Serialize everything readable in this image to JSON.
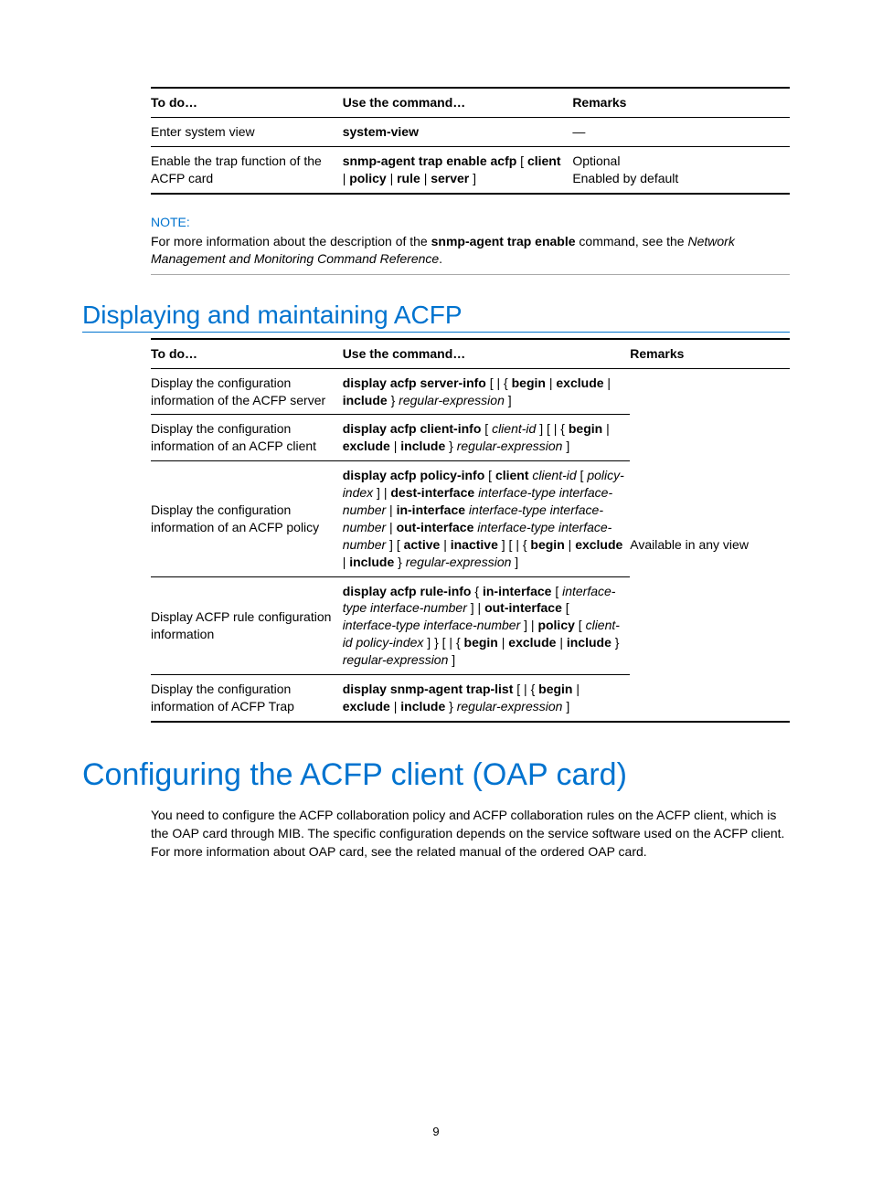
{
  "colors": {
    "brand": "#0073cf",
    "text": "#000000",
    "bg": "#ffffff",
    "rule_light": "#aaaaaa"
  },
  "fonts": {
    "body_size_pt": 10.5,
    "h2_size_pt": 21,
    "h1_size_pt": 25
  },
  "table1": {
    "headers": {
      "c1": "To do…",
      "c2": "Use the command…",
      "c3": "Remarks"
    },
    "rows": [
      {
        "c1": "Enter system view",
        "c2_bold": "system-view",
        "c2_tail": "",
        "c3": "—"
      },
      {
        "c1": "Enable the trap function of the ACFP card",
        "c2_parts": [
          {
            "t": "snmp-agent trap enable acfp ",
            "b": true
          },
          {
            "t": "[ ",
            "b": false
          },
          {
            "t": "client ",
            "b": true
          },
          {
            "t": "| ",
            "b": false
          },
          {
            "t": "policy ",
            "b": true
          },
          {
            "t": "| ",
            "b": false
          },
          {
            "t": "rule ",
            "b": true
          },
          {
            "t": "| ",
            "b": false
          },
          {
            "t": "server ",
            "b": true
          },
          {
            "t": "]",
            "b": false
          }
        ],
        "c3_line1": "Optional",
        "c3_line2": "Enabled by default"
      }
    ]
  },
  "note": {
    "label": "NOTE:",
    "text_pre": "For more information about the description of the ",
    "text_bold": "snmp-agent trap enable",
    "text_mid": " command, see the ",
    "text_ital": "Network Management and Monitoring Command Reference",
    "text_post": "."
  },
  "section_heading": "Displaying and maintaining ACFP",
  "table2": {
    "headers": {
      "c1": "To do…",
      "c2": "Use the command…",
      "c3": "Remarks"
    },
    "remarks_shared": "Available in any view",
    "rows": [
      {
        "c1": "Display the configuration information of the ACFP server",
        "c2": [
          {
            "t": "display acfp server-info ",
            "b": true
          },
          {
            "t": "[ | { ",
            "b": false
          },
          {
            "t": "begin ",
            "b": true
          },
          {
            "t": "| ",
            "b": false
          },
          {
            "t": "exclude ",
            "b": true
          },
          {
            "t": "| ",
            "b": false
          },
          {
            "t": "include ",
            "b": true
          },
          {
            "t": "} ",
            "b": false
          },
          {
            "t": "regular-expression ",
            "i": true
          },
          {
            "t": "]",
            "b": false
          }
        ]
      },
      {
        "c1": "Display the configuration information of an ACFP client",
        "c2": [
          {
            "t": "display acfp client-info ",
            "b": true
          },
          {
            "t": "[ ",
            "b": false
          },
          {
            "t": "client-id ",
            "i": true
          },
          {
            "t": "] [ | { ",
            "b": false
          },
          {
            "t": "begin ",
            "b": true
          },
          {
            "t": "| ",
            "b": false
          },
          {
            "t": "exclude ",
            "b": true
          },
          {
            "t": "| ",
            "b": false
          },
          {
            "t": "include ",
            "b": true
          },
          {
            "t": "} ",
            "b": false
          },
          {
            "t": "regular-expression ",
            "i": true
          },
          {
            "t": "]",
            "b": false
          }
        ]
      },
      {
        "c1": "Display the configuration information of an ACFP policy",
        "c2": [
          {
            "t": "display acfp policy-info ",
            "b": true
          },
          {
            "t": "[ ",
            "b": false
          },
          {
            "t": "client",
            "b": true
          },
          {
            "t": " client-id ",
            "i": true
          },
          {
            "t": "[ ",
            "b": false
          },
          {
            "t": "policy-index ",
            "i": true
          },
          {
            "t": "] | ",
            "b": false
          },
          {
            "t": "dest-interface ",
            "b": true
          },
          {
            "t": " interface-type interface-number ",
            "i": true
          },
          {
            "t": "| ",
            "b": false
          },
          {
            "t": "in-interface",
            "b": true
          },
          {
            "t": " interface-type interface-number ",
            "i": true
          },
          {
            "t": "| ",
            "b": false
          },
          {
            "t": "out-interface",
            "b": true
          },
          {
            "t": " interface-type interface-number ",
            "i": true
          },
          {
            "t": "] [ ",
            "b": false
          },
          {
            "t": "active ",
            "b": true
          },
          {
            "t": "| ",
            "b": false
          },
          {
            "t": "inactive ",
            "b": true
          },
          {
            "t": "] [ | { ",
            "b": false
          },
          {
            "t": "begin ",
            "b": true
          },
          {
            "t": "| ",
            "b": false
          },
          {
            "t": "exclude ",
            "b": true
          },
          {
            "t": "| ",
            "b": false
          },
          {
            "t": "include ",
            "b": true
          },
          {
            "t": "} ",
            "b": false
          },
          {
            "t": "regular-expression ",
            "i": true
          },
          {
            "t": "]",
            "b": false
          }
        ]
      },
      {
        "c1": "Display ACFP rule configuration information",
        "c2": [
          {
            "t": "display acfp rule-info ",
            "b": true
          },
          {
            "t": "{ ",
            "b": false
          },
          {
            "t": "in-interface ",
            "b": true
          },
          {
            "t": "[ ",
            "b": false
          },
          {
            "t": "interface-type interface-number ",
            "i": true
          },
          {
            "t": "] | ",
            "b": false
          },
          {
            "t": "out-interface ",
            "b": true
          },
          {
            "t": "[ ",
            "b": false
          },
          {
            "t": "interface-type interface-number ",
            "i": true
          },
          {
            "t": "] | ",
            "b": false
          },
          {
            "t": "policy ",
            "b": true
          },
          {
            "t": "[ ",
            "b": false
          },
          {
            "t": "client-id policy-index ",
            "i": true
          },
          {
            "t": "] } [ | { ",
            "b": false
          },
          {
            "t": "begin ",
            "b": true
          },
          {
            "t": "| ",
            "b": false
          },
          {
            "t": "exclude ",
            "b": true
          },
          {
            "t": "| ",
            "b": false
          },
          {
            "t": "include ",
            "b": true
          },
          {
            "t": "} ",
            "b": false
          },
          {
            "t": "regular-expression ",
            "i": true
          },
          {
            "t": "]",
            "b": false
          }
        ]
      },
      {
        "c1": "Display the configuration information of ACFP Trap",
        "c2": [
          {
            "t": "display snmp-agent trap-list ",
            "b": true
          },
          {
            "t": "[ | { ",
            "b": false
          },
          {
            "t": "begin ",
            "b": true
          },
          {
            "t": "| ",
            "b": false
          },
          {
            "t": "exclude ",
            "b": true
          },
          {
            "t": "| ",
            "b": false
          },
          {
            "t": "include ",
            "b": true
          },
          {
            "t": "} ",
            "b": false
          },
          {
            "t": "regular-expression ",
            "i": true
          },
          {
            "t": "]",
            "b": false
          }
        ]
      }
    ]
  },
  "chapter_heading": "Configuring the ACFP client (OAP card)",
  "chapter_body": "You need to configure the ACFP collaboration policy and ACFP collaboration rules on the ACFP client, which is the OAP card through MIB. The specific configuration depends on the service software used on the ACFP client. For more information about OAP card, see the related manual of the ordered OAP card.",
  "page_number": "9"
}
